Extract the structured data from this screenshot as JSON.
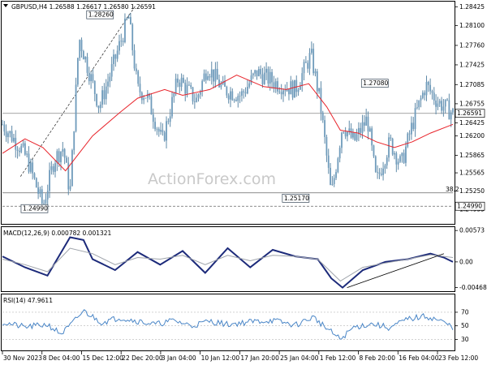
{
  "chart_data": [
    {
      "type": "candlestick",
      "header": "GBPUSD,H4  1.26588 1.26617 1.26580 1.26591",
      "watermark": "ActionForex.com",
      "ylim": [
        1.247,
        1.285
      ],
      "y_ticks": [
        "1.28425",
        "1.28100",
        "1.27760",
        "1.27425",
        "1.27085",
        "1.26755",
        "1.26425",
        "1.26200",
        "1.25865",
        "1.25565",
        "1.25250",
        "1.24935"
      ],
      "price_path_x": [
        0,
        0.04,
        0.055,
        0.09,
        0.115,
        0.135,
        0.15,
        0.17,
        0.215,
        0.245,
        0.28,
        0.3,
        0.32,
        0.355,
        0.39,
        0.43,
        0.455,
        0.49,
        0.53,
        0.565,
        0.61,
        0.65,
        0.685,
        0.705,
        0.73,
        0.755,
        0.78,
        0.81,
        0.83,
        0.86,
        0.885,
        0.91,
        0.94,
        0.965,
        1.0
      ],
      "price_path_y": [
        1.264,
        1.26,
        1.258,
        1.2499,
        1.258,
        1.26,
        1.252,
        1.279,
        1.267,
        1.274,
        1.2826,
        1.27,
        1.269,
        1.261,
        1.272,
        1.268,
        1.274,
        1.27,
        1.269,
        1.273,
        1.271,
        1.27,
        1.276,
        1.268,
        1.2517,
        1.264,
        1.261,
        1.265,
        1.254,
        1.261,
        1.257,
        1.264,
        1.2708,
        1.268,
        1.2659
      ],
      "ma_path_x": [
        0,
        0.05,
        0.09,
        0.14,
        0.2,
        0.26,
        0.3,
        0.36,
        0.4,
        0.46,
        0.52,
        0.58,
        0.63,
        0.68,
        0.72,
        0.75,
        0.79,
        0.83,
        0.87,
        0.91,
        0.95,
        1.0
      ],
      "ma_path_y": [
        1.259,
        1.2615,
        1.26,
        1.256,
        1.262,
        1.266,
        1.2685,
        1.27,
        1.269,
        1.27,
        1.2725,
        1.2705,
        1.27,
        1.271,
        1.267,
        1.263,
        1.2625,
        1.261,
        1.26,
        1.261,
        1.2625,
        1.264
      ],
      "levels": [
        {
          "label": "1.28260",
          "value": 1.2826,
          "at": 0.25
        },
        {
          "label": "1.27080",
          "value": 1.2708,
          "at": 0.86
        },
        {
          "label": "1.25170",
          "value": 1.2517,
          "at": 0.67
        },
        {
          "label": "1.24990",
          "value": 1.2499,
          "at": 0.09
        }
      ],
      "current_price": {
        "label": "1.26591",
        "value": 1.2659
      },
      "support_label": "1.24990",
      "fib_label": "38.2",
      "fib_value": 1.2522
    },
    {
      "type": "line",
      "header": "MACD(12,26,9) 0.000782 0.001321",
      "ylim": [
        -0.0052,
        0.0062
      ],
      "y_ticks": [
        "0.00573",
        "0.00",
        "-0.004685"
      ],
      "macd_path_x": [
        0,
        0.05,
        0.1,
        0.15,
        0.18,
        0.2,
        0.25,
        0.3,
        0.35,
        0.4,
        0.45,
        0.5,
        0.55,
        0.6,
        0.65,
        0.7,
        0.73,
        0.755,
        0.8,
        0.85,
        0.9,
        0.95,
        0.98,
        1.0
      ],
      "macd_path_y": [
        0.001,
        -0.001,
        -0.0025,
        0.0045,
        0.004,
        0.0005,
        -0.0015,
        0.0018,
        -0.0005,
        0.002,
        -0.002,
        0.0025,
        -0.001,
        0.0022,
        0.001,
        0.0005,
        -0.003,
        -0.0047,
        -0.0015,
        0.0,
        0.0005,
        0.0015,
        0.0008,
        0.0
      ],
      "signal_path_x": [
        0,
        0.05,
        0.1,
        0.15,
        0.2,
        0.25,
        0.3,
        0.35,
        0.4,
        0.45,
        0.5,
        0.55,
        0.6,
        0.65,
        0.7,
        0.75,
        0.8,
        0.85,
        0.9,
        0.95,
        1.0
      ],
      "signal_path_y": [
        0.0005,
        -0.0005,
        -0.0018,
        0.0025,
        0.0015,
        -0.0005,
        0.0008,
        0.0005,
        0.0012,
        -0.0005,
        0.0012,
        0.0002,
        0.0012,
        0.001,
        0.0005,
        -0.0035,
        -0.001,
        -0.0002,
        0.0005,
        0.0013,
        0.0008
      ],
      "trendline": [
        [
          0.765,
          -0.0047
        ],
        [
          0.98,
          0.0015
        ]
      ]
    },
    {
      "type": "line",
      "header": "RSI(14) 47.9611",
      "ylim": [
        15,
        95
      ],
      "y_ticks": [
        "70",
        "50",
        "30"
      ],
      "rsi_path_x": [
        0,
        0.05,
        0.1,
        0.13,
        0.15,
        0.18,
        0.22,
        0.26,
        0.3,
        0.34,
        0.38,
        0.42,
        0.46,
        0.5,
        0.55,
        0.6,
        0.65,
        0.69,
        0.72,
        0.75,
        0.78,
        0.82,
        0.86,
        0.9,
        0.94,
        0.97,
        1.0
      ],
      "rsi_path_y": [
        55,
        48,
        52,
        38,
        50,
        72,
        55,
        62,
        57,
        52,
        58,
        50,
        57,
        52,
        56,
        58,
        51,
        63,
        46,
        30,
        48,
        53,
        47,
        60,
        64,
        58,
        48
      ]
    }
  ],
  "x_axis_labels": [
    "30 Nov 2023",
    "8 Dec 04:00",
    "15 Dec 12:00",
    "22 Dec 20:00",
    "3 Jan 04:00",
    "10 Jan 12:00",
    "17 Jan 20:00",
    "25 Jan 04:00",
    "1 Feb 12:00",
    "8 Feb 20:00",
    "16 Feb 04:00",
    "23 Feb 12:00"
  ]
}
